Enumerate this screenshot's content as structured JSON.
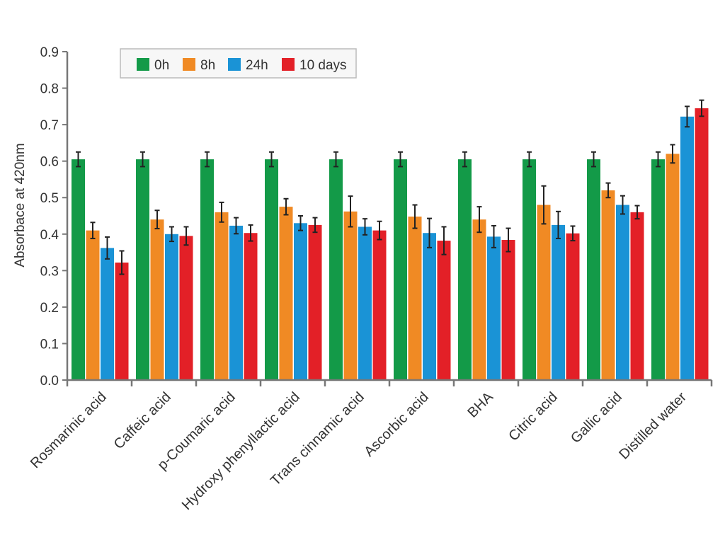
{
  "chart_data": {
    "type": "bar",
    "ylabel": "Absorbace at 420nm",
    "ylim": [
      0,
      0.9
    ],
    "yticks": [
      "0.0",
      "0.1",
      "0.2",
      "0.3",
      "0.4",
      "0.5",
      "0.6",
      "0.7",
      "0.8",
      "0.9"
    ],
    "categories": [
      "Rosmarinic acid",
      "Caffeic acid",
      "p-Coumaric acid",
      "Hydroxy phenyllactic acid",
      "Trans cinnamic acid",
      "Ascorbic acid",
      "BHA",
      "Citric acid",
      "Gallic acid",
      "Distilled water"
    ],
    "series": [
      {
        "name": "0h",
        "color": "#139a48",
        "values": [
          0.605,
          0.605,
          0.605,
          0.605,
          0.605,
          0.605,
          0.605,
          0.605,
          0.605,
          0.605
        ],
        "errors": [
          0.02,
          0.02,
          0.02,
          0.02,
          0.02,
          0.02,
          0.02,
          0.02,
          0.02,
          0.02
        ]
      },
      {
        "name": "8h",
        "color": "#f08a24",
        "values": [
          0.41,
          0.44,
          0.46,
          0.475,
          0.462,
          0.448,
          0.44,
          0.48,
          0.52,
          0.62
        ],
        "errors": [
          0.022,
          0.025,
          0.027,
          0.022,
          0.042,
          0.032,
          0.035,
          0.052,
          0.02,
          0.025
        ]
      },
      {
        "name": "24h",
        "color": "#1a93d6",
        "values": [
          0.362,
          0.4,
          0.423,
          0.43,
          0.42,
          0.403,
          0.393,
          0.425,
          0.48,
          0.722
        ],
        "errors": [
          0.03,
          0.02,
          0.022,
          0.02,
          0.022,
          0.04,
          0.03,
          0.037,
          0.025,
          0.028
        ]
      },
      {
        "name": "10 days",
        "color": "#e32027",
        "values": [
          0.322,
          0.395,
          0.403,
          0.425,
          0.41,
          0.382,
          0.384,
          0.402,
          0.46,
          0.745
        ],
        "errors": [
          0.032,
          0.025,
          0.022,
          0.02,
          0.025,
          0.038,
          0.032,
          0.02,
          0.018,
          0.022
        ]
      }
    ],
    "error_bars": true,
    "grid": false,
    "legend_position": "top-left"
  }
}
